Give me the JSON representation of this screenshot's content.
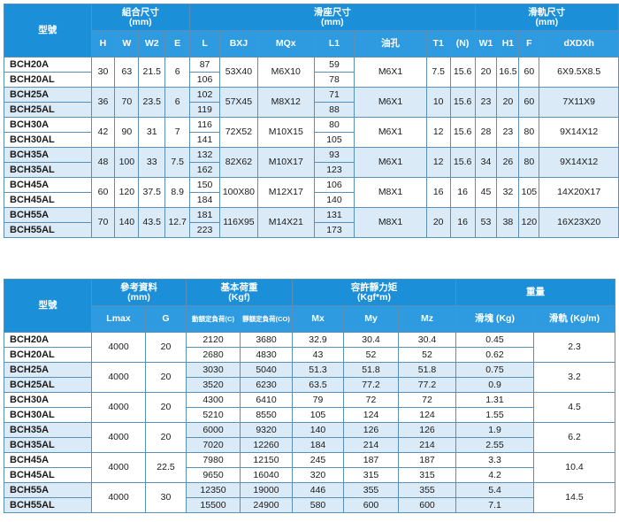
{
  "table1": {
    "model_header": "型號",
    "groups": [
      {
        "label": "組合尺寸",
        "unit": "(mm)"
      },
      {
        "label": "滑座尺寸",
        "unit": "(mm)"
      },
      {
        "label": "滑軌尺寸",
        "unit": "(mm)"
      }
    ],
    "columns": [
      "H",
      "W",
      "W2",
      "E",
      "L",
      "BXJ",
      "MQx",
      "L1",
      "油孔",
      "T1",
      "(N)",
      "W1",
      "H1",
      "F",
      "dXDXh"
    ],
    "rows": [
      {
        "a": "BCH20A",
        "b": "BCH20AL",
        "H": "30",
        "W": "63",
        "W2": "21.5",
        "E": "6",
        "L": [
          "87",
          "106"
        ],
        "BXJ": "53X40",
        "MQx": "M6X10",
        "L1": [
          "59",
          "78"
        ],
        "oil": "M6X1",
        "T1": "7.5",
        "N": "15.6",
        "W1": "20",
        "H1": "16.5",
        "F": "60",
        "dxd": "6X9.5X8.5"
      },
      {
        "a": "BCH25A",
        "b": "BCH25AL",
        "H": "36",
        "W": "70",
        "W2": "23.5",
        "E": "6",
        "L": [
          "102",
          "119"
        ],
        "BXJ": "57X45",
        "MQx": "M8X12",
        "L1": [
          "71",
          "88"
        ],
        "oil": "M6X1",
        "T1": "10",
        "N": "15.6",
        "W1": "23",
        "H1": "20",
        "F": "60",
        "dxd": "7X11X9"
      },
      {
        "a": "BCH30A",
        "b": "BCH30AL",
        "H": "42",
        "W": "90",
        "W2": "31",
        "E": "7",
        "L": [
          "116",
          "141"
        ],
        "BXJ": "72X52",
        "MQx": "M10X15",
        "L1": [
          "80",
          "105"
        ],
        "oil": "M6X1",
        "T1": "12",
        "N": "15.6",
        "W1": "28",
        "H1": "23",
        "F": "80",
        "dxd": "9X14X12"
      },
      {
        "a": "BCH35A",
        "b": "BCH35AL",
        "H": "48",
        "W": "100",
        "W2": "33",
        "E": "7.5",
        "L": [
          "132",
          "162"
        ],
        "BXJ": "82X62",
        "MQx": "M10X17",
        "L1": [
          "93",
          "123"
        ],
        "oil": "M6X1",
        "T1": "12",
        "N": "15.6",
        "W1": "34",
        "H1": "26",
        "F": "80",
        "dxd": "9X14X12"
      },
      {
        "a": "BCH45A",
        "b": "BCH45AL",
        "H": "60",
        "W": "120",
        "W2": "37.5",
        "E": "8.9",
        "L": [
          "150",
          "184"
        ],
        "BXJ": "100X80",
        "MQx": "M12X17",
        "L1": [
          "106",
          "140"
        ],
        "oil": "M8X1",
        "T1": "16",
        "N": "16",
        "W1": "45",
        "H1": "32",
        "F": "105",
        "dxd": "14X20X17"
      },
      {
        "a": "BCH55A",
        "b": "BCH55AL",
        "H": "70",
        "W": "140",
        "W2": "43.5",
        "E": "12.7",
        "L": [
          "181",
          "223"
        ],
        "BXJ": "116X95",
        "MQx": "M14X21",
        "L1": [
          "131",
          "173"
        ],
        "oil": "M8X1",
        "T1": "20",
        "N": "16",
        "W1": "53",
        "H1": "38",
        "F": "120",
        "dxd": "16X23X20"
      }
    ]
  },
  "table2": {
    "model_header": "型號",
    "groups": [
      {
        "label": "參考資料",
        "unit": "(mm)"
      },
      {
        "label": "基本荷重",
        "unit": "(Kgf)"
      },
      {
        "label": "容許靜力矩",
        "unit": "(Kgf*m)"
      },
      {
        "label": "重量",
        "unit": ""
      }
    ],
    "columns": [
      "Lmax",
      "G",
      "動額定負荷(C)",
      "靜額定負荷(CO)",
      "Mx",
      "My",
      "Mz",
      "滑塊 (Kg)",
      "滑軌 (Kg/m)"
    ],
    "rows": [
      {
        "a": "BCH20A",
        "b": "BCH20AL",
        "Lmax": "4000",
        "G": "20",
        "C": [
          "2120",
          "2680"
        ],
        "CO": [
          "3680",
          "4830"
        ],
        "Mx": [
          "32.9",
          "43"
        ],
        "My": [
          "30.4",
          "52"
        ],
        "Mz": [
          "30.4",
          "52"
        ],
        "block": [
          "0.45",
          "0.62"
        ],
        "rail": "2.3"
      },
      {
        "a": "BCH25A",
        "b": "BCH25AL",
        "Lmax": "4000",
        "G": "20",
        "C": [
          "3030",
          "3520"
        ],
        "CO": [
          "5040",
          "6230"
        ],
        "Mx": [
          "51.3",
          "63.5"
        ],
        "My": [
          "51.8",
          "77.2"
        ],
        "Mz": [
          "51.8",
          "77.2"
        ],
        "block": [
          "0.75",
          "0.9"
        ],
        "rail": "3.2"
      },
      {
        "a": "BCH30A",
        "b": "BCH30AL",
        "Lmax": "4000",
        "G": "20",
        "C": [
          "4300",
          "5210"
        ],
        "CO": [
          "6410",
          "8550"
        ],
        "Mx": [
          "79",
          "105"
        ],
        "My": [
          "72",
          "124"
        ],
        "Mz": [
          "72",
          "124"
        ],
        "block": [
          "1.31",
          "1.55"
        ],
        "rail": "4.5"
      },
      {
        "a": "BCH35A",
        "b": "BCH35AL",
        "Lmax": "4000",
        "G": "20",
        "C": [
          "6000",
          "7020"
        ],
        "CO": [
          "9320",
          "12260"
        ],
        "Mx": [
          "140",
          "184"
        ],
        "My": [
          "126",
          "214"
        ],
        "Mz": [
          "126",
          "214"
        ],
        "block": [
          "1.9",
          "2.55"
        ],
        "rail": "6.2"
      },
      {
        "a": "BCH45A",
        "b": "BCH45AL",
        "Lmax": "4000",
        "G": "22.5",
        "C": [
          "7980",
          "9650"
        ],
        "CO": [
          "12150",
          "16040"
        ],
        "Mx": [
          "245",
          "320"
        ],
        "My": [
          "187",
          "315"
        ],
        "Mz": [
          "187",
          "315"
        ],
        "block": [
          "3.3",
          "4.2"
        ],
        "rail": "10.4"
      },
      {
        "a": "BCH55A",
        "b": "BCH55AL",
        "Lmax": "4000",
        "G": "30",
        "C": [
          "12350",
          "15500"
        ],
        "CO": [
          "19000",
          "24900"
        ],
        "Mx": [
          "446",
          "580"
        ],
        "My": [
          "355",
          "600"
        ],
        "Mz": [
          "355",
          "600"
        ],
        "block": [
          "5.4",
          "7.1"
        ],
        "rail": "14.5"
      }
    ]
  }
}
